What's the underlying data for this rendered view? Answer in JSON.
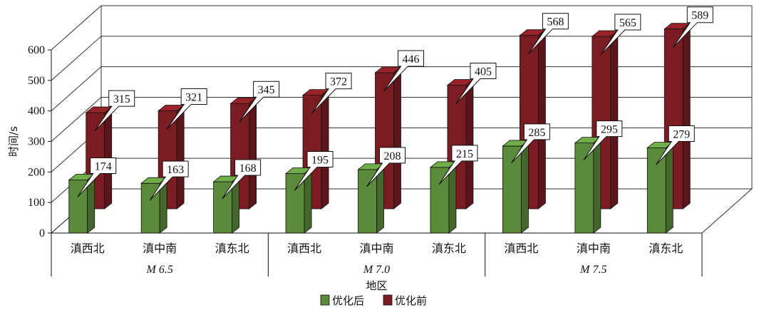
{
  "chart_data": {
    "type": "bar",
    "ylabel": "时间/s",
    "xlabel": "地区",
    "ylim": [
      0,
      600
    ],
    "yticks": [
      0,
      100,
      200,
      300,
      400,
      500,
      600
    ],
    "grid": true,
    "legend_position": "bottom",
    "groups": [
      {
        "label": "M 6.5",
        "categories": [
          "滇西北",
          "滇中南",
          "滇东北"
        ]
      },
      {
        "label": "M 7.0",
        "categories": [
          "滇西北",
          "滇中南",
          "滇东北"
        ]
      },
      {
        "label": "M 7.5",
        "categories": [
          "滇西北",
          "滇中南",
          "滇东北"
        ]
      }
    ],
    "series": [
      {
        "name": "优化后",
        "color": "#5a8a3a",
        "values": [
          174,
          163,
          168,
          195,
          208,
          215,
          285,
          295,
          279
        ]
      },
      {
        "name": "优化前",
        "color": "#7b1c22",
        "values": [
          315,
          321,
          345,
          372,
          446,
          405,
          568,
          565,
          589
        ]
      }
    ]
  }
}
